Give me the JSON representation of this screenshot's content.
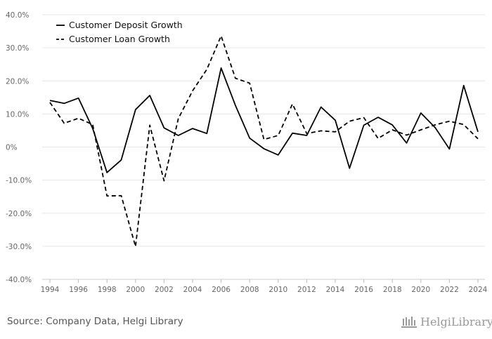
{
  "chart_data": {
    "type": "line",
    "title": "",
    "xlabel": "",
    "ylabel": "",
    "x": [
      1994,
      1995,
      1996,
      1997,
      1998,
      1999,
      2000,
      2001,
      2002,
      2003,
      2004,
      2005,
      2006,
      2007,
      2008,
      2009,
      2010,
      2011,
      2012,
      2013,
      2014,
      2015,
      2016,
      2017,
      2018,
      2019,
      2020,
      2021,
      2022,
      2023,
      2024
    ],
    "xticks": [
      "1994",
      "1996",
      "1998",
      "2000",
      "2002",
      "2004",
      "2006",
      "2008",
      "2010",
      "2012",
      "2014",
      "2016",
      "2018",
      "2020",
      "2022",
      "2024"
    ],
    "ylim": [
      -40,
      40
    ],
    "yticks": [
      {
        "value": 40,
        "label": "40.0%"
      },
      {
        "value": 30,
        "label": "30.0%"
      },
      {
        "value": 20,
        "label": "20.0%"
      },
      {
        "value": 10,
        "label": "10.0%"
      },
      {
        "value": 0,
        "label": "0%"
      },
      {
        "value": -10,
        "label": "-10.0%"
      },
      {
        "value": -20,
        "label": "-20.0%"
      },
      {
        "value": -30,
        "label": "-30.0%"
      },
      {
        "value": -40,
        "label": "-40.0%"
      }
    ],
    "legend_position": "top-left",
    "series": [
      {
        "name": "Customer Deposit Growth",
        "style": "solid",
        "values": [
          14.1,
          13.2,
          14.8,
          5.6,
          -7.7,
          -3.9,
          11.3,
          15.6,
          5.8,
          3.5,
          5.6,
          4.1,
          23.9,
          12.6,
          2.7,
          -0.5,
          -2.4,
          4.2,
          3.5,
          12.1,
          8.1,
          -6.4,
          6.6,
          9.0,
          6.7,
          1.2,
          10.3,
          5.9,
          -0.6,
          18.6,
          4.6
        ]
      },
      {
        "name": "Customer Loan Growth",
        "style": "dashed",
        "values": [
          13.5,
          7.2,
          8.7,
          6.8,
          -14.8,
          -14.7,
          -30.1,
          6.6,
          -10.2,
          8.6,
          17.0,
          23.5,
          33.6,
          20.8,
          19.3,
          2.3,
          3.5,
          13.0,
          4.1,
          4.9,
          4.6,
          7.8,
          8.9,
          2.6,
          5.2,
          3.6,
          5.2,
          6.7,
          7.8,
          6.8,
          2.5
        ]
      }
    ]
  },
  "footer": {
    "source": "Source: Company Data, Helgi Library",
    "brand": "HelgiLibrary."
  }
}
